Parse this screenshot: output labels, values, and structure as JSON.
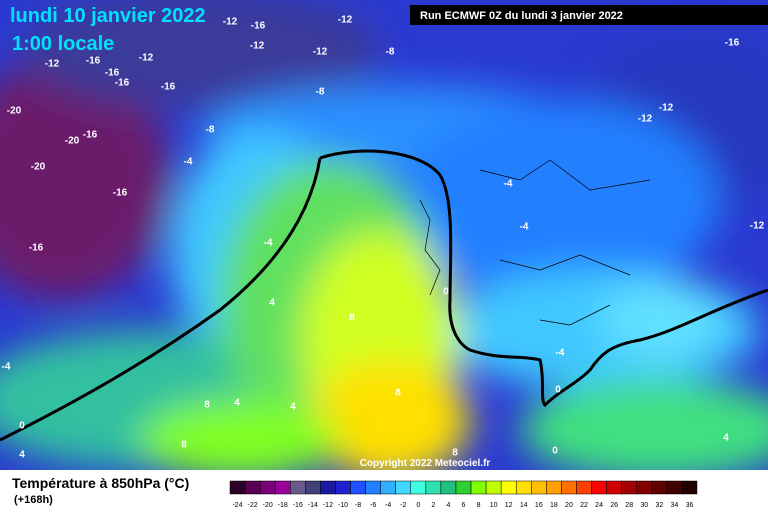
{
  "header": {
    "title": "lundi 10 janvier 2022",
    "subtitle": "1:00 locale"
  },
  "run_info": "Run ECMWF 0Z du lundi 3 janvier 2022",
  "copyright": "Copyright 2022 Meteociel.fr",
  "footer": {
    "title": "Température à 850hPa (°C)",
    "horizon": "(+168h)"
  },
  "legend": {
    "ticks": [
      -24,
      -22,
      -20,
      -18,
      -16,
      -14,
      -12,
      -10,
      -8,
      -6,
      -4,
      -2,
      0,
      2,
      4,
      6,
      8,
      10,
      12,
      14,
      16,
      18,
      20,
      22,
      24,
      26,
      28,
      30,
      32,
      34,
      36
    ],
    "colors": [
      "#2d0028",
      "#5a0050",
      "#7a0078",
      "#9a009a",
      "#6a5a8a",
      "#40407a",
      "#1a1aa0",
      "#2020d0",
      "#2050ff",
      "#2080ff",
      "#30b0ff",
      "#40d8ff",
      "#40ffe0",
      "#30e0b0",
      "#20c080",
      "#30d030",
      "#80ff00",
      "#c0ff00",
      "#ffff00",
      "#ffe000",
      "#ffc000",
      "#ffa000",
      "#ff7000",
      "#ff4000",
      "#ff0000",
      "#d00000",
      "#a00000",
      "#800000",
      "#600000",
      "#400000",
      "#200000"
    ]
  },
  "contour_labels": [
    -12,
    -16,
    -12,
    -12,
    -12,
    -8,
    -12,
    -16,
    -16,
    -12,
    -16,
    -16,
    -8,
    -20,
    -20,
    -16,
    -8,
    -4,
    -20,
    -16,
    -16,
    -4,
    -12,
    -12,
    -16,
    -4,
    -4,
    -12,
    4,
    8,
    0,
    -4,
    0,
    -4,
    8,
    4,
    4,
    0,
    4,
    8,
    8,
    0,
    8,
    4
  ]
}
